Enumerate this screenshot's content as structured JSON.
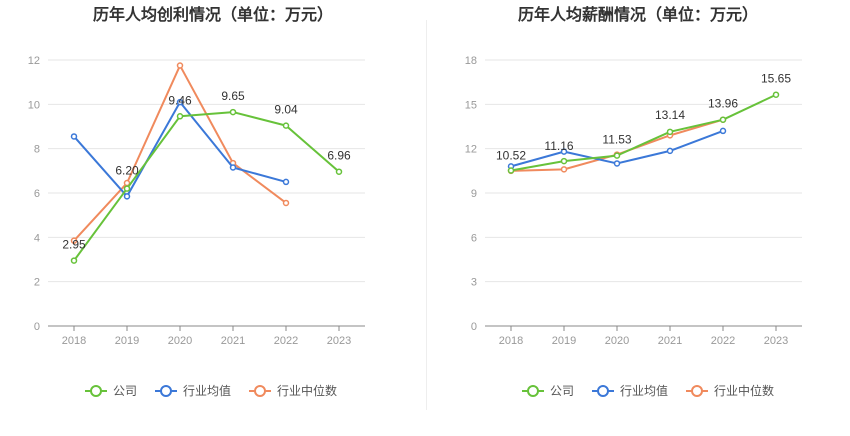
{
  "colors": {
    "company": "#67c23a",
    "industry_avg": "#3b78d8",
    "industry_median": "#f08a5d"
  },
  "chart_data": [
    {
      "type": "line",
      "title": "历年人均创利情况（单位：万元）",
      "xlabel": "",
      "ylabel": "",
      "categories": [
        "2018",
        "2019",
        "2020",
        "2021",
        "2022",
        "2023"
      ],
      "ylim": [
        0,
        12
      ],
      "yticks": [
        0,
        2,
        4,
        6,
        8,
        10,
        12
      ],
      "grid": true,
      "legend_position": "bottom",
      "series": [
        {
          "name": "公司",
          "key": "company",
          "values": [
            2.95,
            6.2,
            9.46,
            9.65,
            9.04,
            6.96
          ],
          "labels": [
            "2.95",
            "6.20",
            "9.46",
            "9.65",
            "9.04",
            "6.96"
          ]
        },
        {
          "name": "行业均值",
          "key": "industry_avg",
          "values": [
            8.55,
            5.85,
            10.1,
            7.15,
            6.5,
            null
          ]
        },
        {
          "name": "行业中位数",
          "key": "industry_median",
          "values": [
            3.85,
            6.45,
            11.75,
            7.35,
            5.55,
            null
          ]
        }
      ]
    },
    {
      "type": "line",
      "title": "历年人均薪酬情况（单位：万元）",
      "xlabel": "",
      "ylabel": "",
      "categories": [
        "2018",
        "2019",
        "2020",
        "2021",
        "2022",
        "2023"
      ],
      "ylim": [
        0,
        18
      ],
      "yticks": [
        0,
        3,
        6,
        9,
        12,
        15,
        18
      ],
      "grid": true,
      "legend_position": "bottom",
      "series": [
        {
          "name": "公司",
          "key": "company",
          "values": [
            10.52,
            11.16,
            11.53,
            13.14,
            13.96,
            15.65
          ],
          "labels": [
            "10.52",
            "11.16",
            "11.53",
            "13.14",
            "13.96",
            "15.65"
          ]
        },
        {
          "name": "行业均值",
          "key": "industry_avg",
          "values": [
            10.8,
            11.8,
            11.0,
            11.85,
            13.2,
            null
          ]
        },
        {
          "name": "行业中位数",
          "key": "industry_median",
          "values": [
            10.5,
            10.6,
            11.6,
            12.9,
            13.96,
            null
          ]
        }
      ]
    }
  ]
}
